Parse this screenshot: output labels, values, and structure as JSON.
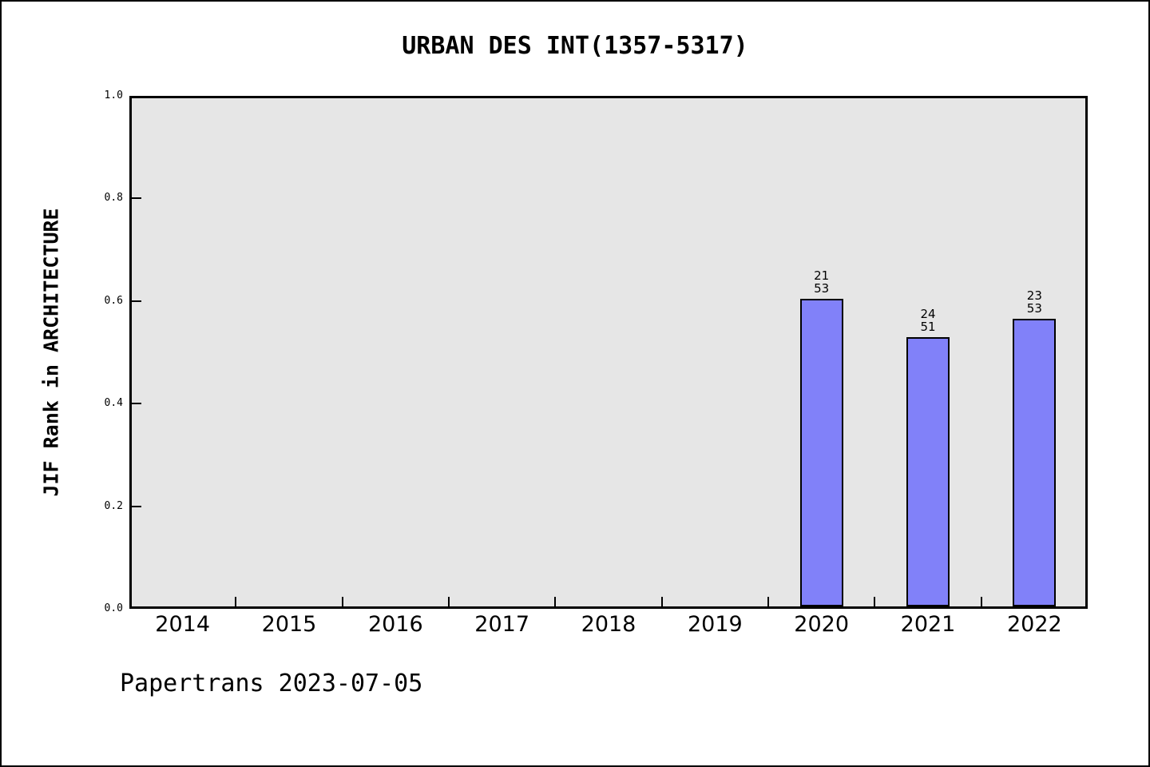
{
  "chart_data": {
    "type": "bar",
    "title": "URBAN DES INT(1357-5317)",
    "ylabel": "JIF Rank in ARCHITECTURE",
    "xlabel": "",
    "categories": [
      "2014",
      "2015",
      "2016",
      "2017",
      "2018",
      "2019",
      "2020",
      "2021",
      "2022"
    ],
    "values": [
      null,
      null,
      null,
      null,
      null,
      null,
      0.604,
      0.529,
      0.566
    ],
    "bar_labels": [
      null,
      null,
      null,
      null,
      null,
      null,
      [
        "21",
        "53"
      ],
      [
        "24",
        "51"
      ],
      [
        "23",
        "53"
      ]
    ],
    "ylim": [
      0.0,
      1.0
    ],
    "yticks": [
      0.0,
      0.2,
      0.4,
      0.6,
      0.8,
      1.0
    ],
    "grid": "off",
    "legend": "none",
    "footer": "Papertrans 2023-07-05",
    "colors": {
      "bar_fill": "#8181f9",
      "bar_edge": "#000000",
      "plot_background": "#e6e6e6",
      "page_background": "#ffffff",
      "axis": "#000000",
      "text": "#000000"
    }
  }
}
